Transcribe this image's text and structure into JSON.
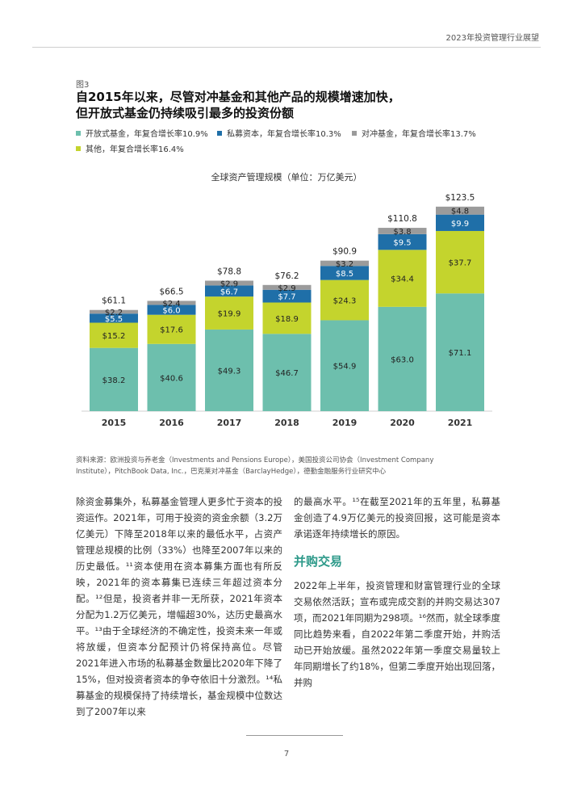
{
  "header": {
    "title": "2023年投资管理行业展望"
  },
  "figure": {
    "label": "图3",
    "title_lines": [
      "自2015年以来，尽管对冲基金和其他产品的规模增速加快，",
      "但开放式基金仍持续吸引最多的投资份额"
    ]
  },
  "legend": [
    {
      "label": "开放式基金，年复合增长率10.9%",
      "color": "#6dbfad"
    },
    {
      "label": "私募资本，年复合增长率10.3%",
      "color": "#1f6fa8"
    },
    {
      "label": "对冲基金，年复合增长率13.7%",
      "color": "#9b9b9b"
    },
    {
      "label": "其他，年复合增长率16.4%",
      "color": "#c4d42d"
    }
  ],
  "chart_data": {
    "type": "bar",
    "stacked": true,
    "title": "全球资产管理规模（单位：万亿美元）",
    "categories": [
      "2015",
      "2016",
      "2017",
      "2018",
      "2019",
      "2020",
      "2021"
    ],
    "series": [
      {
        "name": "开放式基金，年复合增长率10.9%",
        "color": "#6dbfad",
        "values": [
          38.2,
          40.6,
          49.3,
          46.7,
          54.9,
          63.0,
          71.1
        ]
      },
      {
        "name": "其他，年复合增长率16.4%",
        "color": "#c4d42d",
        "values": [
          15.2,
          17.6,
          19.9,
          18.9,
          24.3,
          34.4,
          37.7
        ]
      },
      {
        "name": "私募资本，年复合增长率10.3%",
        "color": "#1f6fa8",
        "values": [
          5.5,
          6.0,
          6.7,
          7.7,
          8.5,
          9.5,
          9.9
        ]
      },
      {
        "name": "对冲基金，年复合增长率13.7%",
        "color": "#9b9b9b",
        "values": [
          2.2,
          2.4,
          2.9,
          2.9,
          3.2,
          3.8,
          4.8
        ]
      }
    ],
    "totals": [
      61.1,
      66.5,
      78.8,
      76.2,
      90.9,
      110.8,
      123.5
    ],
    "value_prefix": "$",
    "total_format": "one_decimal",
    "ylim": [
      0,
      130
    ],
    "grid": false,
    "legend_position": "top"
  },
  "source": "资料来源：欧洲投资与养老金（Investments and Pensions Europe），美国投资公司协会（Investment Company Institute），PitchBook Data, Inc.，巴克莱对冲基金（BarclayHedge），德勤金融服务行业研究中心",
  "body": {
    "left_paragraph": "除资金募集外，私募基金管理人更多忙于资本的投资运作。2021年，可用于投资的资金余额（3.2万亿美元）下降至2018年以来的最低水平，占资产管理总规模的比例（33%）也降至2007年以来的历史最低。¹¹资本使用在资本募集方面也有所反映，2021年的资本募集已连续三年超过资本分配。¹²但是，投资者并非一无所获，2021年资本分配为1.2万亿美元，增幅超30%，达历史最高水平。¹³由于全球经济的不确定性，投资未来一年或将放缓，但资本分配预计仍将保持高位。尽管2021年进入市场的私募基金数量比2020年下降了15%，但对投资者资本的争夺依旧十分激烈。¹⁴私募基金的规模保持了持续增长，基金规模中位数达到了2007年以来",
    "right_paragraph_1": "的最高水平。¹⁵在截至2021年的五年里，私募基金创造了4.9万亿美元的投资回报，这可能是资本承诺逐年持续增长的原因。",
    "section_heading": "并购交易",
    "right_paragraph_2": "2022年上半年，投资管理和财富管理行业的全球交易依然活跃；宣布或完成交割的并购交易达307项，而2021年同期为298项。¹⁶然而，就全球季度同比趋势来看，自2022年第二季度开始，并购活动已开始放缓。虽然2022年第一季度交易量较上年同期增长了约18%，但第二季度开始出现回落，并购"
  },
  "footer": {
    "page_number": "7"
  }
}
